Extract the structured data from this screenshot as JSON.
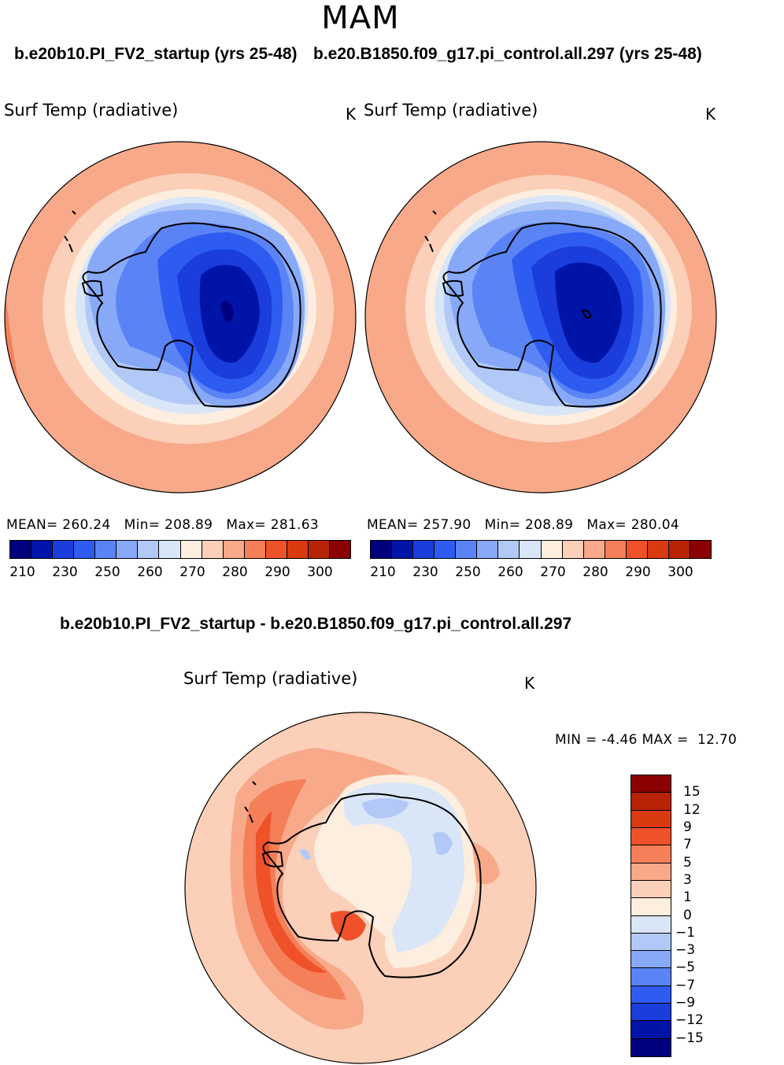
{
  "season": "MAM",
  "panel_left": {
    "case": "b.e20b10.PI_FV2_startup (yrs 25-48)",
    "variable": "Surf Temp (radiative)",
    "units": "K",
    "mean_label": "MEAN=",
    "mean": "260.24",
    "min_label": "Min=",
    "min": "208.89",
    "max_label": "Max=",
    "max": "281.63"
  },
  "panel_right": {
    "case": "b.e20.B1850.f09_g17.pi_control.all.297 (yrs 25-48)",
    "variable": "Surf Temp (radiative)",
    "units": "K",
    "mean_label": "MEAN=",
    "mean": "257.90",
    "min_label": "Min=",
    "min": "208.89",
    "max_label": "Max=",
    "max": "280.04"
  },
  "diff_panel": {
    "title": "b.e20b10.PI_FV2_startup - b.e20.B1850.f09_g17.pi_control.all.297",
    "variable": "Surf Temp (radiative)",
    "units": "K",
    "min_label": "MIN =",
    "min": "-4.46",
    "max_label": "MAX =",
    "max": "12.70"
  },
  "chart_data": [
    {
      "type": "heatmap",
      "title": "Surf Temp (radiative)",
      "projection": "south-polar-stereographic",
      "units": "K",
      "stats": {
        "mean": 260.24,
        "min": 208.89,
        "max": 281.63
      },
      "colorbar": {
        "ticks": [
          "210",
          "230",
          "250",
          "260",
          "270",
          "280",
          "290",
          "300"
        ],
        "colors": [
          "#00007f",
          "#0015a8",
          "#1a3ddb",
          "#2f5cf0",
          "#5a84f5",
          "#87a9f7",
          "#b2c9f7",
          "#d9e6f7",
          "#fdeedf",
          "#fbcfb8",
          "#f8a98a",
          "#f47f59",
          "#ef5128",
          "#d93a10",
          "#b82306",
          "#8b0000"
        ]
      }
    },
    {
      "type": "heatmap",
      "title": "Surf Temp (radiative)",
      "projection": "south-polar-stereographic",
      "units": "K",
      "stats": {
        "mean": 257.9,
        "min": 208.89,
        "max": 280.04
      },
      "colorbar": {
        "ticks": [
          "210",
          "230",
          "250",
          "260",
          "270",
          "280",
          "290",
          "300"
        ],
        "colors": [
          "#00007f",
          "#0015a8",
          "#1a3ddb",
          "#2f5cf0",
          "#5a84f5",
          "#87a9f7",
          "#b2c9f7",
          "#d9e6f7",
          "#fdeedf",
          "#fbcfb8",
          "#f8a98a",
          "#f47f59",
          "#ef5128",
          "#d93a10",
          "#b82306",
          "#8b0000"
        ]
      }
    },
    {
      "type": "heatmap",
      "title": "Surf Temp (radiative)",
      "projection": "south-polar-stereographic",
      "units": "K",
      "stats": {
        "min": -4.46,
        "max": 12.7
      },
      "colorbar": {
        "ticks": [
          "15",
          "12",
          "9",
          "7",
          "5",
          "3",
          "1",
          "0",
          "−1",
          "−3",
          "−5",
          "−7",
          "−9",
          "−12",
          "−15"
        ],
        "colors": [
          "#8b0000",
          "#b82306",
          "#d93a10",
          "#ef5128",
          "#f47f59",
          "#f8a98a",
          "#fbcfb8",
          "#fdeedf",
          "#d9e6f7",
          "#b2c9f7",
          "#87a9f7",
          "#5a84f5",
          "#2f5cf0",
          "#1a3ddb",
          "#0015a8",
          "#00007f"
        ]
      }
    }
  ]
}
